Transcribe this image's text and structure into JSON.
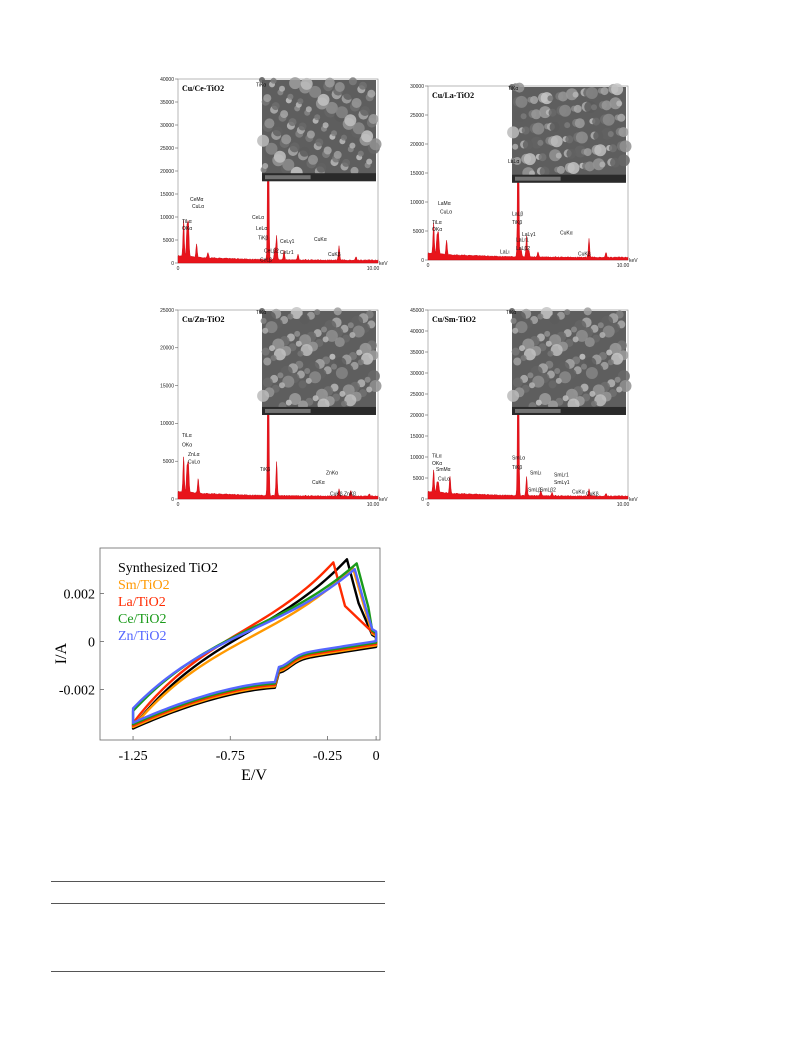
{
  "eds_panels": [
    {
      "title": "Cu/Ce-TiO2",
      "y_ticks": [
        "40000",
        "35000",
        "30000",
        "25000",
        "20000",
        "15000",
        "10000",
        "5000",
        "0"
      ],
      "ymax": 40000,
      "x_end_label": "10.00",
      "x_unit": "keV",
      "x_start_label": "0",
      "peak_labels": [
        "TiKα",
        "CeMα",
        "CuLα",
        "TiLα",
        "OKα",
        "CeLα",
        "LeLα",
        "TiKβ",
        "CeLβ2",
        "CeLβ",
        "CeLr1",
        "CeLγ1",
        "CuKα",
        "CuKβ"
      ]
    },
    {
      "title": "Cu/La-TiO2",
      "y_ticks": [
        "30000",
        "25000",
        "20000",
        "15000",
        "10000",
        "5000",
        "0"
      ],
      "ymax": 30000,
      "x_end_label": "10.00",
      "x_unit": "keV",
      "x_start_label": "0",
      "peak_labels": [
        "TiKα",
        "LaMα",
        "CuLα",
        "TiLα",
        "OKα",
        "LaLα",
        "LaLβ",
        "TiKβ",
        "LaLr1",
        "LaLγ1",
        "LaLβ2",
        "LaLι",
        "CuKα",
        "CuKβ"
      ]
    },
    {
      "title": "Cu/Zn-TiO2",
      "y_ticks": [
        "25000",
        "20000",
        "15000",
        "10000",
        "5000",
        "0"
      ],
      "ymax": 25000,
      "x_end_label": "10.00",
      "x_unit": "keV",
      "x_start_label": "0",
      "peak_labels": [
        "TiKα",
        "TiLα",
        "OKα",
        "ZnLα",
        "CuLα",
        "TiKβ",
        "ZnKα",
        "CuKα",
        "CuKβ",
        "ZnKβ"
      ]
    },
    {
      "title": "Cu/Sm-TiO2",
      "y_ticks": [
        "45000",
        "40000",
        "35000",
        "30000",
        "25000",
        "20000",
        "15000",
        "10000",
        "5000",
        "0"
      ],
      "ymax": 45000,
      "x_end_label": "10.00",
      "x_unit": "keV",
      "x_start_label": "0",
      "peak_labels": [
        "TiKα",
        "TiLα",
        "OKα",
        "SmMα",
        "CuLα",
        "SmLα",
        "TiKβ",
        "SmLι",
        "SmLβ",
        "SmLβ2",
        "SmLr1",
        "SmLγ1",
        "CuKα",
        "CuKβ"
      ]
    }
  ],
  "chart_data": {
    "type": "line",
    "xlabel": "E/V",
    "ylabel": "I/A",
    "xlim": [
      -1.42,
      0.02
    ],
    "ylim": [
      -0.0041,
      0.0039
    ],
    "x_ticks": [
      "-1.25",
      "-0.75",
      "-0.25",
      "0"
    ],
    "y_ticks": [
      "0.002",
      "0",
      "-0.002"
    ],
    "legend_position": "top-left",
    "series": [
      {
        "name": "Synthesized TiO2",
        "color": "#000000",
        "peak_E": -0.15,
        "peak_I": 0.00355,
        "low_end_I": -0.00345
      },
      {
        "name": "Sm/TiO2",
        "color": "#ff9900",
        "peak_E": -0.12,
        "peak_I": 0.00315,
        "low_end_I": -0.0035
      },
      {
        "name": "La/TiO2",
        "color": "#ff2a00",
        "peak_E": -0.22,
        "peak_I": 0.0033,
        "low_end_I": -0.0034
      },
      {
        "name": "Ce/TiO2",
        "color": "#1a9a1a",
        "peak_E": -0.1,
        "peak_I": 0.0032,
        "low_end_I": -0.00295
      },
      {
        "name": "Zn/TiO2",
        "color": "#5566ff",
        "peak_E": -0.11,
        "peak_I": 0.0029,
        "low_end_I": -0.0029
      }
    ]
  }
}
